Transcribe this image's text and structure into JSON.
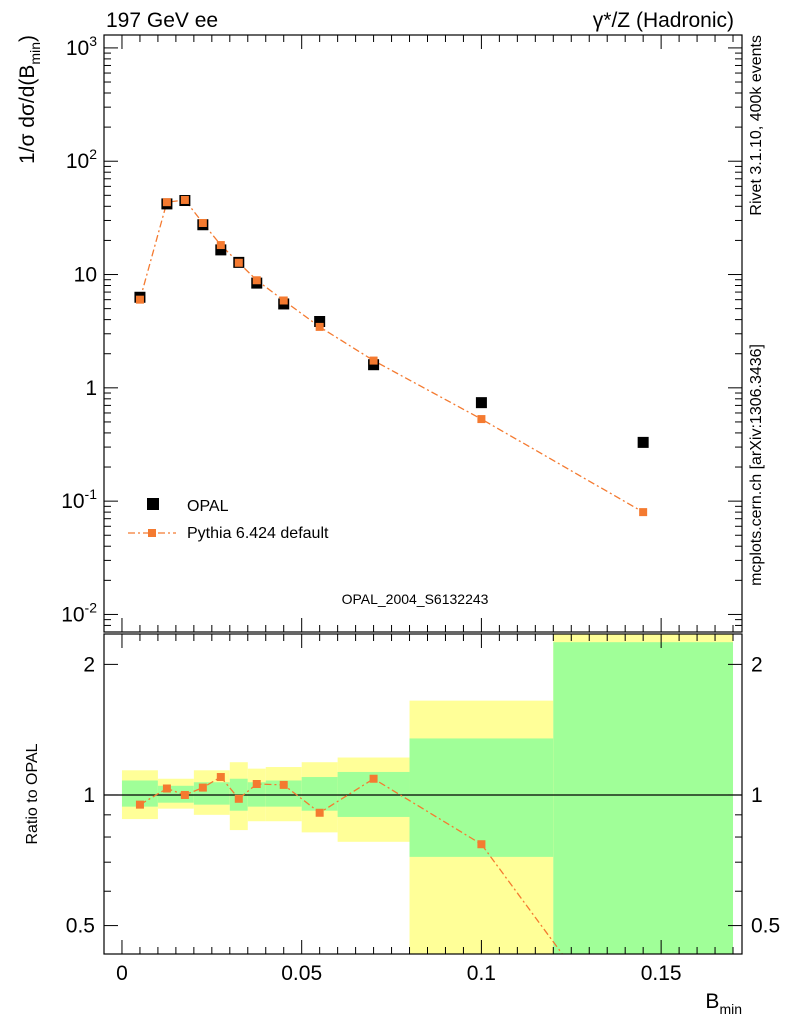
{
  "header": {
    "left_title": "197 GeV ee",
    "right_title": "γ*/Z (Hadronic)"
  },
  "side_labels": {
    "rivet": "Rivet 3.1.10,  400k events",
    "mcplots": "mcplots.cern.ch [arXiv:1306.3436]"
  },
  "analysis_label": "OPAL_2004_S6132243",
  "colors": {
    "data": "#000000",
    "mc": "#f47a30",
    "band_stat": "#a0ff98",
    "band_total": "#ffff98",
    "analysis_label": "#999999",
    "side_label": "#777777"
  },
  "chart_data": [
    {
      "type": "scatter",
      "panel": "main",
      "ylabel": "1/σ dσ/d(B_min)",
      "yscale": "log",
      "ylim": [
        0.007,
        1300
      ],
      "xlim": [
        -0.005,
        0.1725
      ],
      "y_tick_labels": [
        "10^-2",
        "10^-1",
        "1",
        "10",
        "10^2",
        "10^3"
      ],
      "legend": {
        "placement": "bottom-left"
      },
      "series": [
        {
          "name": "OPAL",
          "style": "square-markers",
          "x": [
            0.005,
            0.0125,
            0.0175,
            0.0225,
            0.0275,
            0.0325,
            0.0375,
            0.045,
            0.055,
            0.07,
            0.1,
            0.145
          ],
          "y": [
            6.3,
            42,
            45,
            27.5,
            16.5,
            12.8,
            8.4,
            5.5,
            3.85,
            1.6,
            0.74,
            0.33
          ]
        },
        {
          "name": "Pythia 6.424 default",
          "style": "dash-dot-line-with-markers",
          "x": [
            0.005,
            0.0125,
            0.0175,
            0.0225,
            0.0275,
            0.0325,
            0.0375,
            0.045,
            0.055,
            0.07,
            0.1,
            0.145
          ],
          "y": [
            6.0,
            43.5,
            45.5,
            28.5,
            18.2,
            12.7,
            8.9,
            5.9,
            3.45,
            1.74,
            0.53,
            0.08
          ]
        }
      ]
    },
    {
      "type": "line",
      "panel": "ratio",
      "xlabel": "B_min",
      "ylabel": "Ratio to OPAL",
      "yscale": "log",
      "ylim": [
        0.43,
        2.35
      ],
      "xlim": [
        -0.005,
        0.1725
      ],
      "x_ticks": [
        0,
        0.05,
        0.1,
        0.15
      ],
      "x_tick_labels": [
        "0",
        "0.05",
        "0.1",
        "0.15"
      ],
      "y_ticks": [
        0.5,
        1,
        2
      ],
      "y_tick_labels": [
        "0.5",
        "1",
        "2"
      ],
      "reference_line": 1,
      "bands": [
        {
          "x_lo": 0.0,
          "x_hi": 0.01,
          "stat": [
            0.94,
            1.08
          ],
          "total": [
            0.88,
            1.14
          ]
        },
        {
          "x_lo": 0.01,
          "x_hi": 0.02,
          "stat": [
            0.96,
            1.05
          ],
          "total": [
            0.93,
            1.09
          ]
        },
        {
          "x_lo": 0.02,
          "x_hi": 0.03,
          "stat": [
            0.95,
            1.07
          ],
          "total": [
            0.9,
            1.14
          ]
        },
        {
          "x_lo": 0.03,
          "x_hi": 0.035,
          "stat": [
            0.92,
            1.09
          ],
          "total": [
            0.83,
            1.19
          ]
        },
        {
          "x_lo": 0.035,
          "x_hi": 0.04,
          "stat": [
            0.94,
            1.07
          ],
          "total": [
            0.87,
            1.15
          ]
        },
        {
          "x_lo": 0.04,
          "x_hi": 0.05,
          "stat": [
            0.94,
            1.08
          ],
          "total": [
            0.87,
            1.16
          ]
        },
        {
          "x_lo": 0.05,
          "x_hi": 0.06,
          "stat": [
            0.92,
            1.1
          ],
          "total": [
            0.82,
            1.19
          ]
        },
        {
          "x_lo": 0.06,
          "x_hi": 0.08,
          "stat": [
            0.89,
            1.13
          ],
          "total": [
            0.78,
            1.22
          ]
        },
        {
          "x_lo": 0.08,
          "x_hi": 0.12,
          "stat": [
            0.72,
            1.35
          ],
          "total": [
            0.43,
            1.65
          ]
        },
        {
          "x_lo": 0.12,
          "x_hi": 0.17,
          "stat": [
            0.43,
            2.25
          ],
          "total": [
            0.43,
            2.35
          ]
        }
      ],
      "series": [
        {
          "name": "Pythia 6.424 default",
          "x": [
            0.005,
            0.0125,
            0.0175,
            0.0225,
            0.0275,
            0.0325,
            0.0375,
            0.045,
            0.055,
            0.07,
            0.1,
            0.145
          ],
          "y": [
            0.95,
            1.035,
            1.0,
            1.04,
            1.1,
            0.98,
            1.06,
            1.055,
            0.91,
            1.09,
            0.77,
            0.24
          ]
        }
      ]
    }
  ]
}
